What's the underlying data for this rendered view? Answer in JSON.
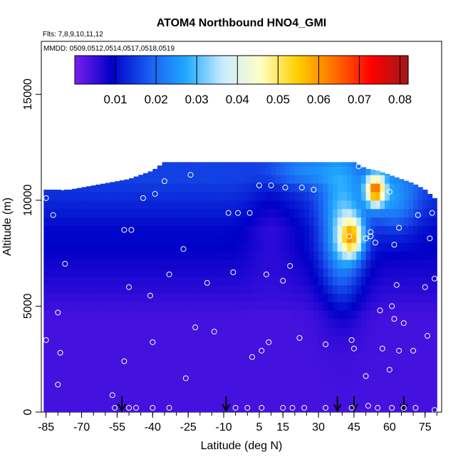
{
  "chart_data": {
    "type": "heatmap",
    "title": "ATOM4 Northbound HNO4_GMI",
    "subtitle_flights": "Flts: 7,8,9,10,11,12",
    "subtitle_dates": "MMDD: 0509,0512,0514,0517,0518,0519",
    "xlabel": "Latitude (deg N)",
    "ylabel": "Altitude (m)",
    "xlim": [
      -87,
      82
    ],
    "ylim": [
      0,
      17500
    ],
    "x_ticks": [
      -85,
      -70,
      -55,
      -40,
      -25,
      -10,
      5,
      15,
      30,
      45,
      60,
      75
    ],
    "y_ticks": [
      0,
      5000,
      10000,
      15000
    ],
    "colorbar": {
      "ticks": [
        0.01,
        0.02,
        0.03,
        0.04,
        0.05,
        0.06,
        0.07,
        0.08
      ],
      "range": [
        0.0,
        0.082
      ],
      "colors": [
        "#7a1ef0",
        "#0000c8",
        "#1a5cf0",
        "#20a8ff",
        "#c8ecff",
        "#ffffc8",
        "#ffd000",
        "#ff7000",
        "#ff0000",
        "#a01818"
      ]
    },
    "field_latitudes": [
      -85,
      -80,
      -75,
      -70,
      -65,
      -60,
      -55,
      -50,
      -45,
      -40,
      -35,
      -30,
      -25,
      -20,
      -15,
      -10,
      -5,
      0,
      5,
      10,
      15,
      20,
      25,
      30,
      35,
      40,
      45,
      50,
      55,
      60,
      65,
      70,
      75,
      80
    ],
    "field_top_altitude_m": [
      10500,
      10500,
      10500,
      10600,
      10700,
      10800,
      10900,
      11000,
      11200,
      11400,
      11800,
      11800,
      11800,
      11800,
      11800,
      11800,
      11800,
      11800,
      11800,
      11800,
      11800,
      11800,
      11800,
      11800,
      11800,
      11800,
      11800,
      11500,
      11400,
      11200,
      11000,
      10800,
      10500,
      10000
    ],
    "flight_markers_latitude": [
      -53,
      -9,
      38,
      45,
      66
    ],
    "sample_points": [
      {
        "lat": -85,
        "alt": 10100
      },
      {
        "lat": -82,
        "alt": 9300
      },
      {
        "lat": -78,
        "alt": 10600
      },
      {
        "lat": -77,
        "alt": 7000
      },
      {
        "lat": -80,
        "alt": 4700
      },
      {
        "lat": -79,
        "alt": 2800
      },
      {
        "lat": -80,
        "alt": 1300
      },
      {
        "lat": -85,
        "alt": 3400
      },
      {
        "lat": -57,
        "alt": 800
      },
      {
        "lat": -56,
        "alt": 200
      },
      {
        "lat": -50,
        "alt": 200
      },
      {
        "lat": -52,
        "alt": 8600
      },
      {
        "lat": -49,
        "alt": 8600
      },
      {
        "lat": -50,
        "alt": 5900
      },
      {
        "lat": -52,
        "alt": 2400
      },
      {
        "lat": -44,
        "alt": 10100
      },
      {
        "lat": -39,
        "alt": 10300
      },
      {
        "lat": -35,
        "alt": 10900
      },
      {
        "lat": -41,
        "alt": 5500
      },
      {
        "lat": -40,
        "alt": 3300
      },
      {
        "lat": -33,
        "alt": 200
      },
      {
        "lat": -33,
        "alt": 6500
      },
      {
        "lat": -27,
        "alt": 7700
      },
      {
        "lat": -24,
        "alt": 11200
      },
      {
        "lat": -22,
        "alt": 4000
      },
      {
        "lat": -26,
        "alt": 1600
      },
      {
        "lat": -17,
        "alt": 6100
      },
      {
        "lat": -14,
        "alt": 3800
      },
      {
        "lat": -8,
        "alt": 9400
      },
      {
        "lat": -4,
        "alt": 9400
      },
      {
        "lat": -6,
        "alt": 6600
      },
      {
        "lat": 1,
        "alt": 9400
      },
      {
        "lat": 5,
        "alt": 10700
      },
      {
        "lat": 2,
        "alt": 2600
      },
      {
        "lat": 6,
        "alt": 2900
      },
      {
        "lat": 8,
        "alt": 6500
      },
      {
        "lat": 9,
        "alt": 3300
      },
      {
        "lat": 10,
        "alt": 10700
      },
      {
        "lat": 15,
        "alt": 6200
      },
      {
        "lat": 16,
        "alt": 10600
      },
      {
        "lat": 18,
        "alt": 6900
      },
      {
        "lat": 22,
        "alt": 3500
      },
      {
        "lat": 23,
        "alt": 10600
      },
      {
        "lat": 28,
        "alt": 10500
      },
      {
        "lat": 33,
        "alt": 3200
      },
      {
        "lat": 44,
        "alt": 3400
      },
      {
        "lat": 45,
        "alt": 3000
      },
      {
        "lat": 43,
        "alt": 8300
      },
      {
        "lat": 47,
        "alt": 11600
      },
      {
        "lat": 50,
        "alt": 1700
      },
      {
        "lat": 51,
        "alt": 300
      },
      {
        "lat": 52,
        "alt": 8500
      },
      {
        "lat": 54,
        "alt": 8000
      },
      {
        "lat": 52,
        "alt": 8300
      },
      {
        "lat": 50,
        "alt": 8200
      },
      {
        "lat": 56,
        "alt": 4800
      },
      {
        "lat": 57,
        "alt": 3000
      },
      {
        "lat": 60,
        "alt": 2000
      },
      {
        "lat": 61,
        "alt": 5000
      },
      {
        "lat": 63,
        "alt": 6000
      },
      {
        "lat": 62,
        "alt": 7900
      },
      {
        "lat": 60,
        "alt": 10400
      },
      {
        "lat": 64,
        "alt": 8700
      },
      {
        "lat": 64,
        "alt": 2900
      },
      {
        "lat": 62,
        "alt": 4400
      },
      {
        "lat": 66,
        "alt": 4200
      },
      {
        "lat": 70,
        "alt": 2900
      },
      {
        "lat": 72,
        "alt": 9300
      },
      {
        "lat": 75,
        "alt": 5900
      },
      {
        "lat": 76,
        "alt": 3600
      },
      {
        "lat": 77,
        "alt": 8200
      },
      {
        "lat": 78,
        "alt": 9400
      },
      {
        "lat": 79,
        "alt": 6300
      },
      {
        "lat": 79,
        "alt": 100
      },
      {
        "lat": 61,
        "alt": 200
      },
      {
        "lat": 55,
        "alt": 200
      },
      {
        "lat": 44,
        "alt": 200
      },
      {
        "lat": 33,
        "alt": 200
      },
      {
        "lat": 24,
        "alt": 200
      },
      {
        "lat": 19,
        "alt": 200
      },
      {
        "lat": 15,
        "alt": 200
      },
      {
        "lat": -5,
        "alt": 200
      },
      {
        "lat": 0,
        "alt": 200
      },
      {
        "lat": -40,
        "alt": 200
      },
      {
        "lat": -47,
        "alt": 200
      },
      {
        "lat": 6,
        "alt": 200
      },
      {
        "lat": 66,
        "alt": 200
      },
      {
        "lat": 71,
        "alt": 200
      }
    ]
  }
}
